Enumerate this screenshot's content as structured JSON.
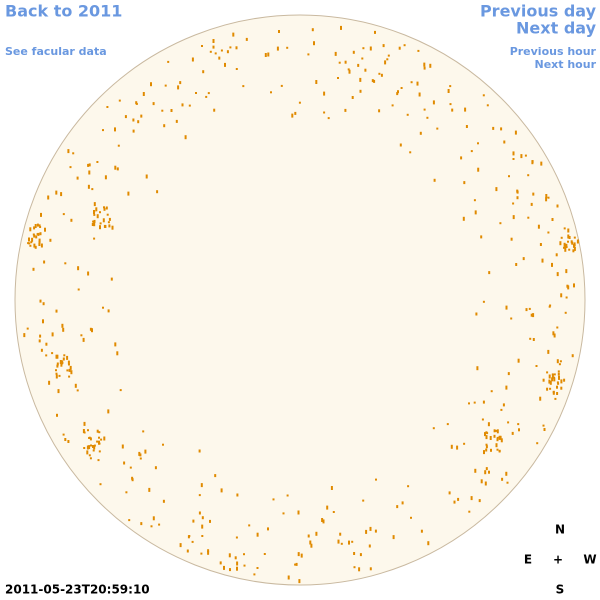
{
  "navigation": {
    "back_link": "Back to 2011",
    "facular_link": "See facular data",
    "previous_day": "Previous day",
    "next_day": "Next day",
    "previous_hour": "Previous hour",
    "next_hour": "Next hour"
  },
  "timestamp": "2011-05-23T20:59:10",
  "compass": {
    "north": "N",
    "east": "E",
    "center": "+",
    "west": "W",
    "south": "S"
  }
}
